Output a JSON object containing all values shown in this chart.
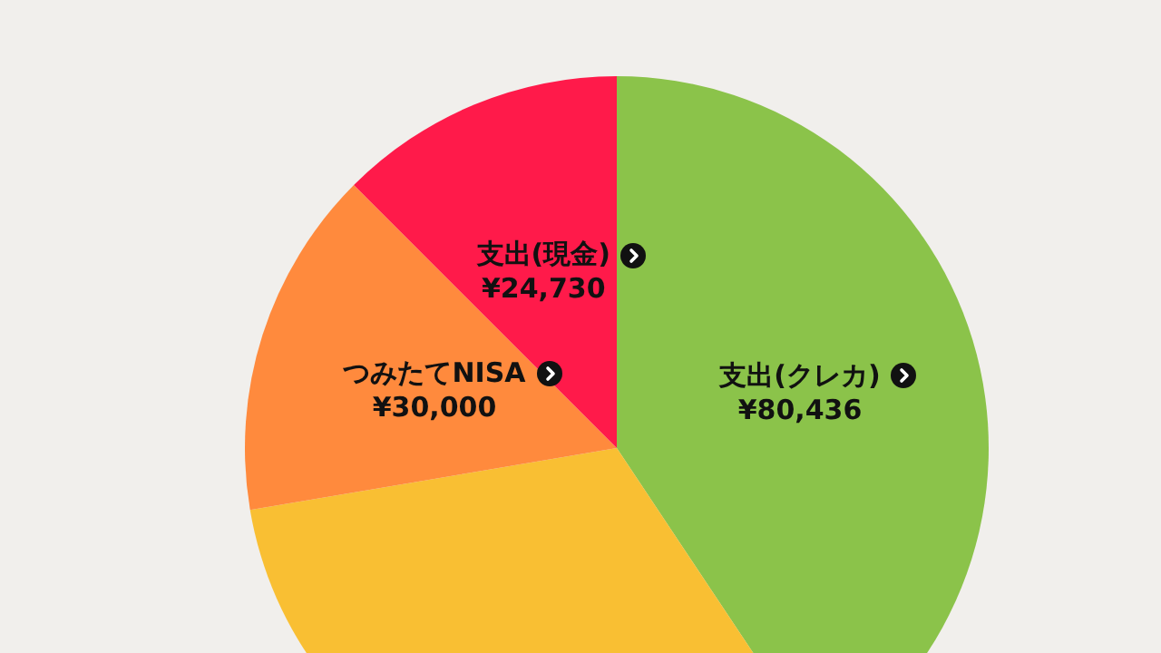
{
  "chart_data": {
    "type": "pie",
    "categories": [
      "支出(クレカ)",
      null,
      "つみたてNISA",
      "支出(現金)"
    ],
    "values": [
      80436,
      62700,
      30000,
      24730
    ],
    "value_labels": [
      "¥80,436",
      null,
      "¥30,000",
      "¥24,730"
    ],
    "colors": [
      "#8bc34a",
      "#f9bf33",
      "#ff8a3d",
      "#ff1a4a"
    ],
    "legend": false
  }
}
